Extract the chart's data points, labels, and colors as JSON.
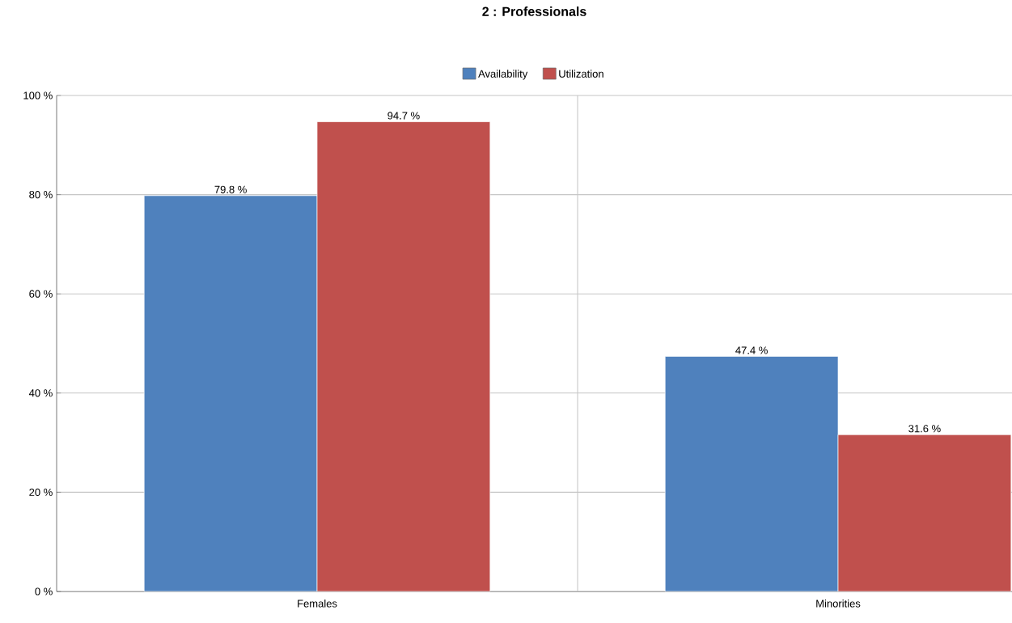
{
  "chart_data": {
    "type": "bar",
    "title": "2 : Professionals",
    "categories": [
      "Females",
      "Minorities"
    ],
    "series": [
      {
        "name": "Availability",
        "color": "#4f81bd",
        "values": [
          79.8,
          47.4
        ],
        "value_labels": [
          "79.8 %",
          "47.4 %"
        ]
      },
      {
        "name": "Utilization",
        "color": "#c0504d",
        "values": [
          94.7,
          31.6
        ],
        "value_labels": [
          "94.7 %",
          "31.6 %"
        ]
      }
    ],
    "ylim": [
      0,
      100
    ],
    "yticks": [
      {
        "value": 0,
        "label": "0 %"
      },
      {
        "value": 20,
        "label": "20 %"
      },
      {
        "value": 40,
        "label": "40 %"
      },
      {
        "value": 60,
        "label": "60 %"
      },
      {
        "value": 80,
        "label": "80 %"
      },
      {
        "value": 100,
        "label": "100 %"
      }
    ],
    "grid": true,
    "legend": "top"
  }
}
